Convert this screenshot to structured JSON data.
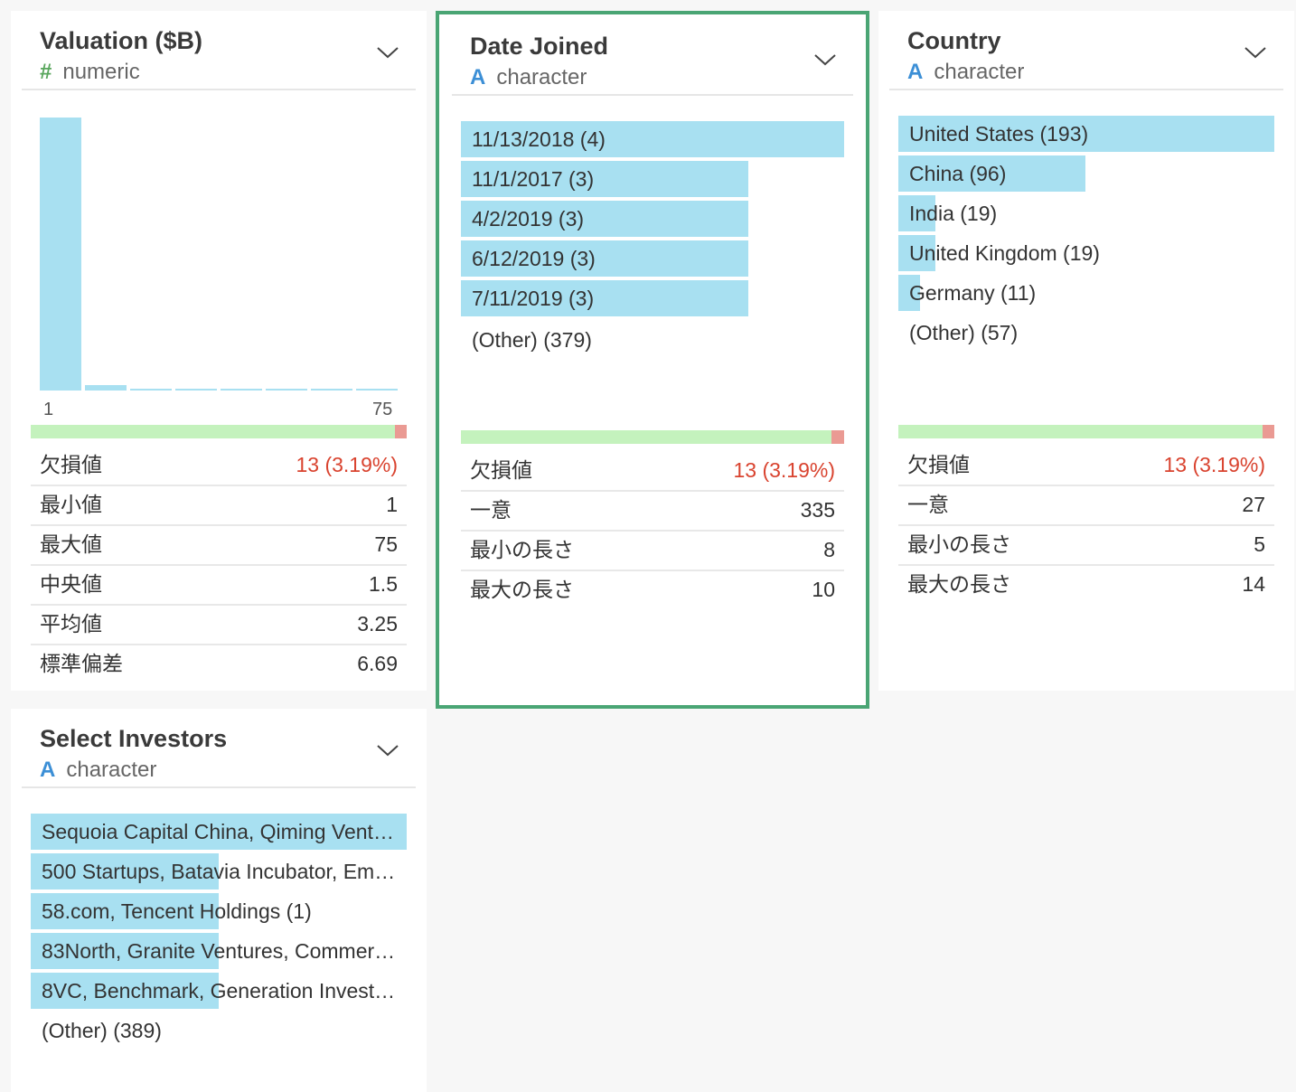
{
  "colors": {
    "bar": "#a8e0f1",
    "quality_ok": "#c4f2bd",
    "quality_missing": "#ea9a93",
    "selected_border": "#4aa574",
    "missing_text": "#d9432f",
    "numeric_icon": "#58a65c",
    "character_icon": "#3c8fd6"
  },
  "valuation": {
    "title": "Valuation ($B)",
    "type_icon": "#",
    "type_label": "numeric",
    "axis_min": "1",
    "axis_max": "75",
    "missing_fraction": 0.0319,
    "stats": [
      {
        "label": "欠損値",
        "value": "13 (3.19%)"
      },
      {
        "label": "最小値",
        "value": "1"
      },
      {
        "label": "最大値",
        "value": "75"
      },
      {
        "label": "中央値",
        "value": "1.5"
      },
      {
        "label": "平均値",
        "value": "3.25"
      },
      {
        "label": "標準偏差",
        "value": "6.69"
      }
    ]
  },
  "date_joined": {
    "title": "Date Joined",
    "type_icon": "A",
    "type_label": "character",
    "items": [
      {
        "label": "11/13/2018 (4)",
        "count": 4
      },
      {
        "label": "11/1/2017 (3)",
        "count": 3
      },
      {
        "label": "4/2/2019 (3)",
        "count": 3
      },
      {
        "label": "6/12/2019 (3)",
        "count": 3
      },
      {
        "label": "7/11/2019 (3)",
        "count": 3
      }
    ],
    "other": "(Other) (379)",
    "missing_fraction": 0.0319,
    "stats": [
      {
        "label": "欠損値",
        "value": "13 (3.19%)"
      },
      {
        "label": "一意",
        "value": "335"
      },
      {
        "label": "最小の長さ",
        "value": "8"
      },
      {
        "label": "最大の長さ",
        "value": "10"
      }
    ]
  },
  "country": {
    "title": "Country",
    "type_icon": "A",
    "type_label": "character",
    "items": [
      {
        "label": "United States (193)",
        "count": 193
      },
      {
        "label": "China (96)",
        "count": 96
      },
      {
        "label": "India (19)",
        "count": 19
      },
      {
        "label": "United Kingdom (19)",
        "count": 19
      },
      {
        "label": "Germany (11)",
        "count": 11
      }
    ],
    "other": "(Other) (57)",
    "missing_fraction": 0.0319,
    "stats": [
      {
        "label": "欠損値",
        "value": "13 (3.19%)"
      },
      {
        "label": "一意",
        "value": "27"
      },
      {
        "label": "最小の長さ",
        "value": "5"
      },
      {
        "label": "最大の長さ",
        "value": "14"
      }
    ]
  },
  "investors": {
    "title": "Select Investors",
    "type_icon": "A",
    "type_label": "character",
    "items": [
      {
        "label": "Sequoia Capital China, Qiming Vent…",
        "count": 2
      },
      {
        "label": "500 Startups, Batavia Incubator, Em…",
        "count": 1
      },
      {
        "label": "58.com, Tencent Holdings (1)",
        "count": 1
      },
      {
        "label": "83North, Granite Ventures, Commer…",
        "count": 1
      },
      {
        "label": "8VC, Benchmark, Generation Invest…",
        "count": 1
      }
    ],
    "other": "(Other) (389)"
  }
}
